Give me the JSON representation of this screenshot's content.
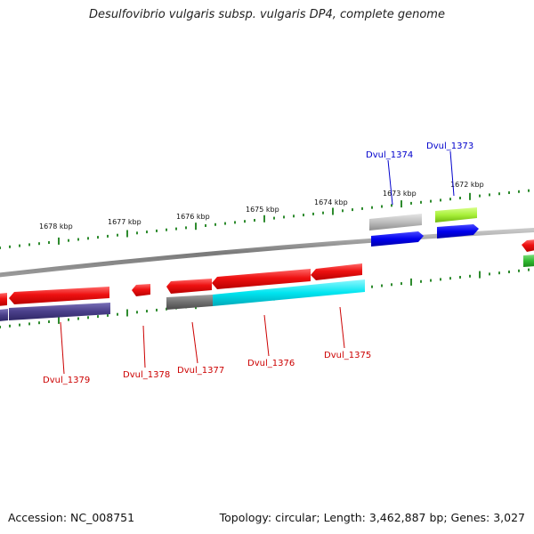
{
  "title": "Desulfovibrio vulgaris subsp. vulgaris DP4, complete genome",
  "footer": {
    "accession": "Accession: NC_008751",
    "summary": "Topology: circular; Length: 3,462,887 bp; Genes: 3,027"
  },
  "ticks": [
    {
      "label": "1678 kbp"
    },
    {
      "label": "1677 kbp"
    },
    {
      "label": "1676 kbp"
    },
    {
      "label": "1675 kbp"
    },
    {
      "label": "1674 kbp"
    },
    {
      "label": "1673 kbp"
    },
    {
      "label": "1672 kbp"
    }
  ],
  "genes": [
    {
      "name": "Dvul_1374",
      "strand": "forward",
      "color": "#0000cc"
    },
    {
      "name": "Dvul_1373",
      "strand": "forward",
      "color": "#0000cc"
    },
    {
      "name": "Dvul_1379",
      "strand": "reverse",
      "color": "#cc0000"
    },
    {
      "name": "Dvul_1378",
      "strand": "reverse",
      "color": "#cc0000"
    },
    {
      "name": "Dvul_1377",
      "strand": "reverse",
      "color": "#cc0000"
    },
    {
      "name": "Dvul_1376",
      "strand": "reverse",
      "color": "#cc0000"
    },
    {
      "name": "Dvul_1375",
      "strand": "reverse",
      "color": "#cc0000"
    }
  ],
  "colors": {
    "backbone": "#888888",
    "tick": "#2e8b2e",
    "cds_reverse": "#ee1111",
    "cds_forward": "#0000ee",
    "cog_purple": "#4a3f8a",
    "cog_cyan": "#00e5f0",
    "cog_gray": "#707070",
    "cog_lightgray": "#bdbdbd",
    "cog_lime": "#a8f03a",
    "cog_green": "#33bb33"
  }
}
